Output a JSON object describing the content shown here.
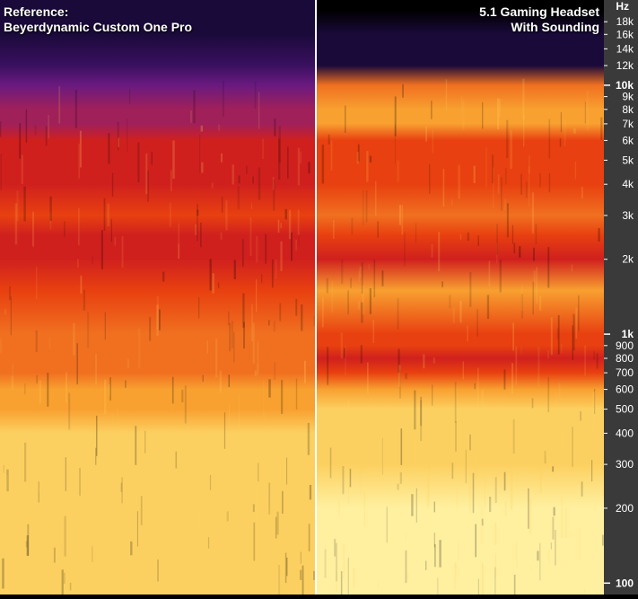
{
  "chart_data": {
    "type": "heatmap",
    "subtype": "spectrogram",
    "panels": [
      {
        "title_lines": [
          "Reference:",
          "Beyerdynamic Custom One Pro"
        ],
        "bands": [
          {
            "hz": 100,
            "intensity": 0.92
          },
          {
            "hz": 200,
            "intensity": 0.9
          },
          {
            "hz": 300,
            "intensity": 0.88
          },
          {
            "hz": 400,
            "intensity": 0.86
          },
          {
            "hz": 500,
            "intensity": 0.84
          },
          {
            "hz": 600,
            "intensity": 0.82
          },
          {
            "hz": 700,
            "intensity": 0.72
          },
          {
            "hz": 800,
            "intensity": 0.68
          },
          {
            "hz": 900,
            "intensity": 0.67
          },
          {
            "hz": 1000,
            "intensity": 0.66
          },
          {
            "hz": 1500,
            "intensity": 0.58
          },
          {
            "hz": 2000,
            "intensity": 0.5
          },
          {
            "hz": 2500,
            "intensity": 0.48
          },
          {
            "hz": 3000,
            "intensity": 0.6
          },
          {
            "hz": 4000,
            "intensity": 0.52
          },
          {
            "hz": 5000,
            "intensity": 0.5
          },
          {
            "hz": 6000,
            "intensity": 0.46
          },
          {
            "hz": 7000,
            "intensity": 0.44
          },
          {
            "hz": 8000,
            "intensity": 0.4
          },
          {
            "hz": 10000,
            "intensity": 0.3
          },
          {
            "hz": 12000,
            "intensity": 0.2
          },
          {
            "hz": 16000,
            "intensity": 0.12
          },
          {
            "hz": 20000,
            "intensity": 0.06
          }
        ]
      },
      {
        "title_lines": [
          "5.1 Gaming Headset",
          "With Sounding"
        ],
        "bands": [
          {
            "hz": 100,
            "intensity": 0.97
          },
          {
            "hz": 200,
            "intensity": 0.95
          },
          {
            "hz": 300,
            "intensity": 0.93
          },
          {
            "hz": 400,
            "intensity": 0.9
          },
          {
            "hz": 500,
            "intensity": 0.88
          },
          {
            "hz": 600,
            "intensity": 0.82
          },
          {
            "hz": 700,
            "intensity": 0.62
          },
          {
            "hz": 800,
            "intensity": 0.48
          },
          {
            "hz": 900,
            "intensity": 0.55
          },
          {
            "hz": 1000,
            "intensity": 0.62
          },
          {
            "hz": 1500,
            "intensity": 0.76
          },
          {
            "hz": 2000,
            "intensity": 0.5
          },
          {
            "hz": 2500,
            "intensity": 0.58
          },
          {
            "hz": 3000,
            "intensity": 0.66
          },
          {
            "hz": 4000,
            "intensity": 0.6
          },
          {
            "hz": 5000,
            "intensity": 0.58
          },
          {
            "hz": 6000,
            "intensity": 0.62
          },
          {
            "hz": 7000,
            "intensity": 0.76
          },
          {
            "hz": 8000,
            "intensity": 0.84
          },
          {
            "hz": 10000,
            "intensity": 0.72
          },
          {
            "hz": 12000,
            "intensity": 0.14
          },
          {
            "hz": 16000,
            "intensity": 0.06
          },
          {
            "hz": 20000,
            "intensity": 0.04
          }
        ]
      }
    ],
    "y_axis": {
      "unit_label": "Hz",
      "scale": "log",
      "range": [
        90,
        22000
      ],
      "ticks": [
        {
          "hz": 18000,
          "label": "18k",
          "major": false
        },
        {
          "hz": 16000,
          "label": "16k",
          "major": false
        },
        {
          "hz": 14000,
          "label": "14k",
          "major": false
        },
        {
          "hz": 12000,
          "label": "12k",
          "major": false
        },
        {
          "hz": 10000,
          "label": "10k",
          "major": true
        },
        {
          "hz": 9000,
          "label": "9k",
          "major": false
        },
        {
          "hz": 8000,
          "label": "8k",
          "major": false
        },
        {
          "hz": 7000,
          "label": "7k",
          "major": false
        },
        {
          "hz": 6000,
          "label": "6k",
          "major": false
        },
        {
          "hz": 5000,
          "label": "5k",
          "major": false
        },
        {
          "hz": 4000,
          "label": "4k",
          "major": false
        },
        {
          "hz": 3000,
          "label": "3k",
          "major": false
        },
        {
          "hz": 2000,
          "label": "2k",
          "major": false
        },
        {
          "hz": 1000,
          "label": "1k",
          "major": true
        },
        {
          "hz": 900,
          "label": "900",
          "major": false
        },
        {
          "hz": 800,
          "label": "800",
          "major": false
        },
        {
          "hz": 700,
          "label": "700",
          "major": false
        },
        {
          "hz": 600,
          "label": "600",
          "major": false
        },
        {
          "hz": 500,
          "label": "500",
          "major": false
        },
        {
          "hz": 400,
          "label": "400",
          "major": false
        },
        {
          "hz": 300,
          "label": "300",
          "major": false
        },
        {
          "hz": 200,
          "label": "200",
          "major": false
        },
        {
          "hz": 100,
          "label": "100",
          "major": true
        }
      ]
    },
    "colors": {
      "background": "#000000",
      "divider": "#ffffff",
      "axis_panel": "#3a3a3a",
      "colormap": [
        "#000000",
        "#1a0a3a",
        "#3a1060",
        "#6a1a80",
        "#a0205a",
        "#d0201e",
        "#e84010",
        "#f07020",
        "#f8a030",
        "#fcd060",
        "#fff0a0"
      ]
    }
  }
}
